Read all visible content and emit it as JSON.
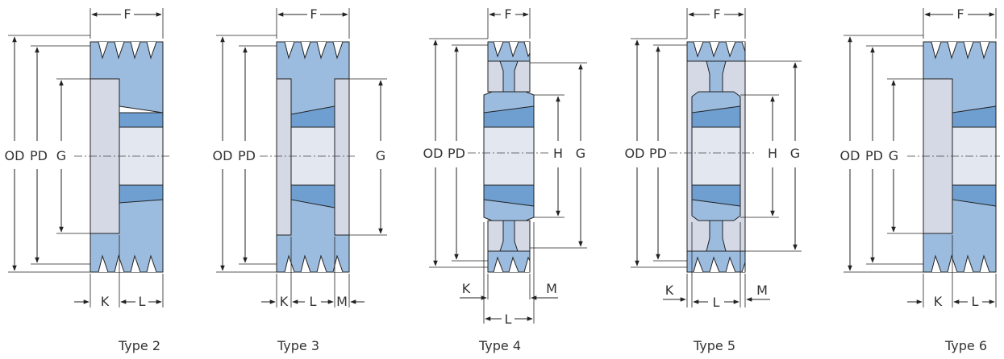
{
  "diagrams": [
    {
      "id": "type2",
      "caption": "Type 2",
      "labels": {
        "F": "F",
        "OD": "OD",
        "PD": "PD",
        "G": "G",
        "K": "K",
        "L": "L"
      }
    },
    {
      "id": "type3",
      "caption": "Type 3",
      "labels": {
        "F": "F",
        "OD": "OD",
        "PD": "PD",
        "G": "G",
        "K": "K",
        "L": "L",
        "M": "M"
      }
    },
    {
      "id": "type4",
      "caption": "Type 4",
      "labels": {
        "F": "F",
        "OD": "OD",
        "PD": "PD",
        "H": "H",
        "G": "G",
        "K": "K",
        "L": "L",
        "M": "M"
      }
    },
    {
      "id": "type5",
      "caption": "Type 5",
      "labels": {
        "F": "F",
        "OD": "OD",
        "PD": "PD",
        "H": "H",
        "G": "G",
        "K": "K",
        "L": "L",
        "M": "M"
      }
    },
    {
      "id": "type6",
      "caption": "Type 6",
      "labels": {
        "F": "F",
        "OD": "OD",
        "PD": "PD",
        "G": "G",
        "K": "K",
        "L": "L"
      }
    }
  ],
  "colors": {
    "pulley_blue": "#9cbcdf",
    "pulley_dark": "#6f9fd0",
    "bushing_grey": "#d5d9e6",
    "bore_light": "#e3e7f0",
    "line": "#222222"
  }
}
